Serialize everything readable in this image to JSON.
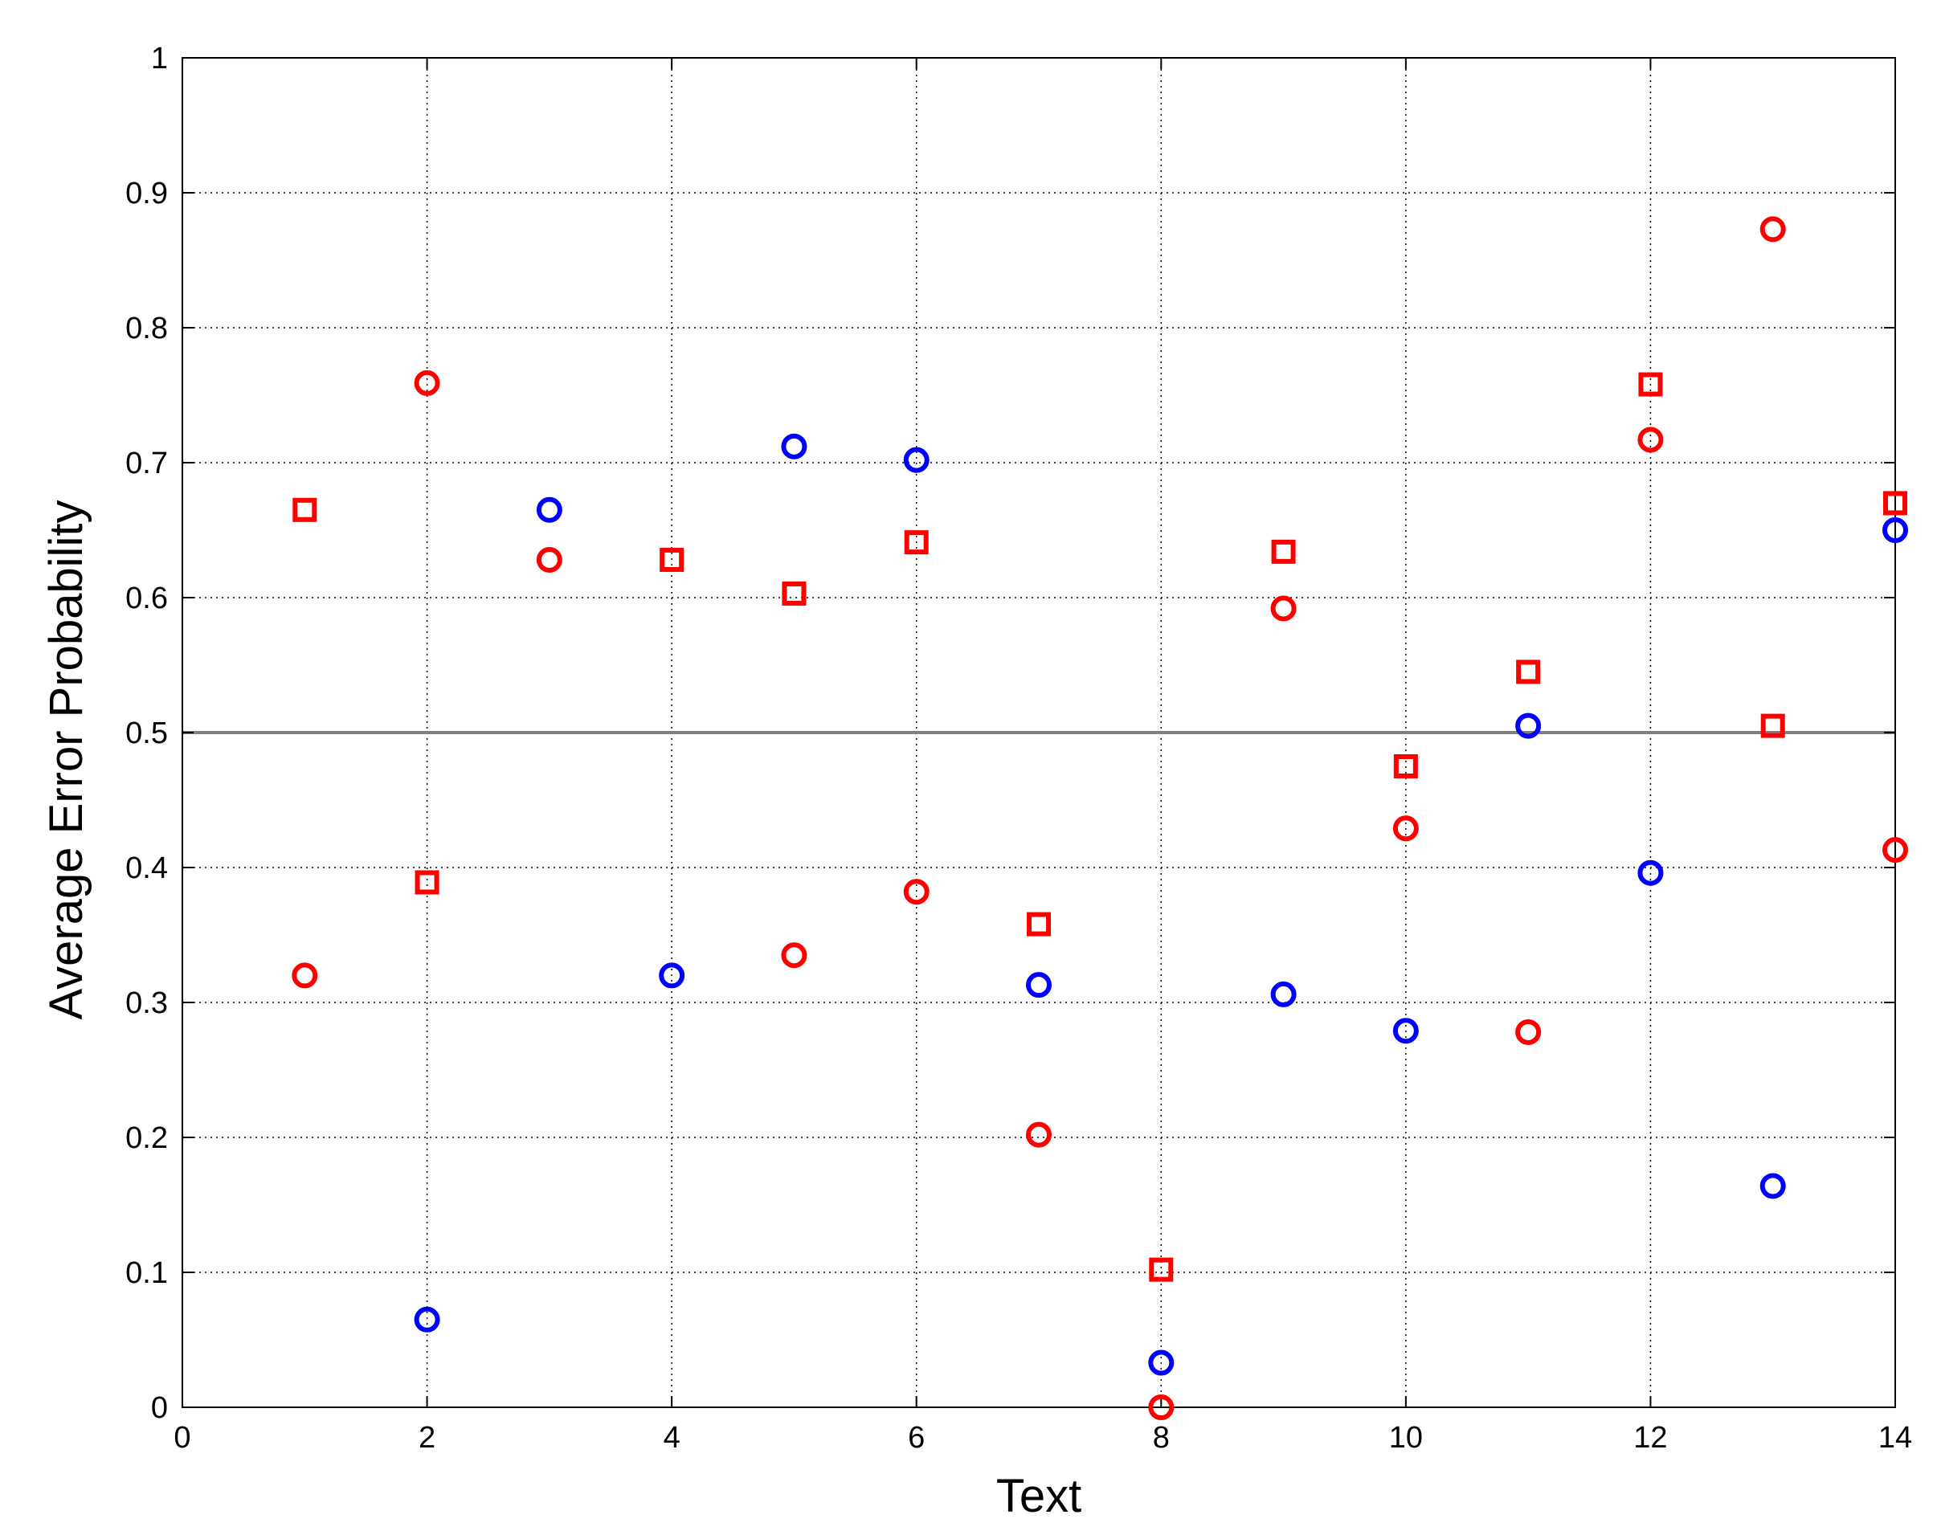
{
  "chart_data": {
    "type": "scatter",
    "title": "",
    "xlabel": "Text",
    "ylabel": "Average Error Probability",
    "xlim": [
      0,
      14
    ],
    "ylim": [
      0,
      1
    ],
    "xticks": [
      "0",
      "2",
      "4",
      "6",
      "8",
      "10",
      "12",
      "14"
    ],
    "yticks": [
      "0",
      "0.1",
      "0.2",
      "0.3",
      "0.4",
      "0.5",
      "0.6",
      "0.7",
      "0.8",
      "0.9",
      "1"
    ],
    "grid": true,
    "grid_style": "dotted",
    "reference_line": {
      "y": 0.5,
      "color": "#808080"
    },
    "series": [
      {
        "marker": "circle",
        "color": "#0000ff",
        "x": [
          2,
          3,
          4,
          5,
          6,
          7,
          8,
          9,
          10,
          11,
          12,
          13,
          14
        ],
        "y": [
          0.065,
          0.665,
          0.32,
          0.712,
          0.702,
          0.313,
          0.033,
          0.306,
          0.279,
          0.505,
          0.396,
          0.164,
          0.65
        ]
      },
      {
        "marker": "circle",
        "color": "#ff0000",
        "x": [
          1,
          2,
          3,
          5,
          6,
          7,
          8,
          9,
          10,
          11,
          12,
          13,
          14
        ],
        "y": [
          0.32,
          0.759,
          0.628,
          0.335,
          0.382,
          0.202,
          0.0,
          0.592,
          0.429,
          0.278,
          0.717,
          0.873,
          0.413
        ]
      },
      {
        "marker": "square",
        "color": "#ff0000",
        "x": [
          1,
          2,
          4,
          5,
          6,
          7,
          8,
          9,
          10,
          11,
          12,
          13,
          14
        ],
        "y": [
          0.665,
          0.389,
          0.628,
          0.603,
          0.641,
          0.358,
          0.102,
          0.634,
          0.475,
          0.545,
          0.758,
          0.505,
          0.67
        ]
      }
    ]
  }
}
